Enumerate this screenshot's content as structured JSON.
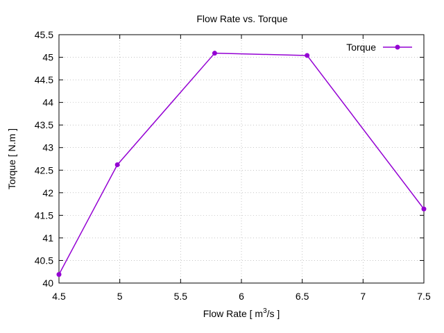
{
  "chart_data": {
    "type": "line",
    "title": "Flow Rate vs. Torque",
    "xlabel": {
      "pre": "Flow Rate [ m",
      "sup": "3",
      "post": "/s ]"
    },
    "ylabel": "Torque [ N.m ]",
    "xlim": [
      4.5,
      7.5
    ],
    "ylim": [
      40,
      45.5
    ],
    "xticks": [
      "4.5",
      "5",
      "5.5",
      "6",
      "6.5",
      "7",
      "7.5"
    ],
    "yticks": [
      "40",
      "40.5",
      "41",
      "41.5",
      "42",
      "42.5",
      "43",
      "43.5",
      "44",
      "44.5",
      "45",
      "45.5"
    ],
    "grid": true,
    "legend_position": "top-right",
    "series": [
      {
        "name": "Torque",
        "color": "#9400d3",
        "x": [
          4.5,
          4.98,
          5.78,
          6.54,
          7.5
        ],
        "y": [
          40.19,
          42.62,
          45.09,
          45.04,
          41.64
        ]
      }
    ]
  }
}
